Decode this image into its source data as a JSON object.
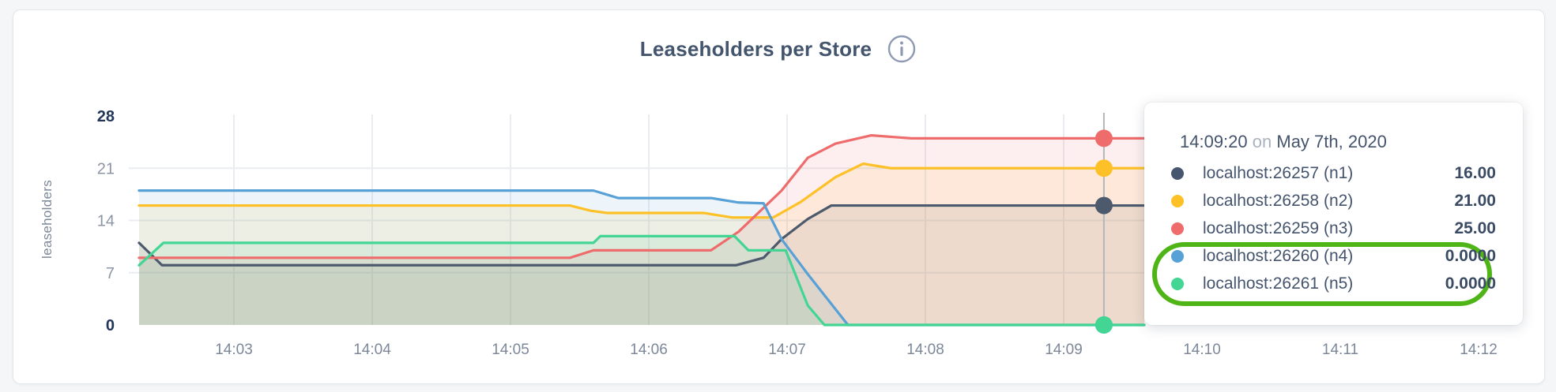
{
  "chart_data": {
    "type": "area",
    "title": "Leaseholders per Store",
    "ylabel": "leaseholders",
    "xlabel": "",
    "ylim": [
      0,
      28
    ],
    "grid": true,
    "legend_position": "tooltip",
    "y_ticks": [
      {
        "value": 0,
        "label": "0",
        "bold": true
      },
      {
        "value": 7,
        "label": "7",
        "bold": false
      },
      {
        "value": 14,
        "label": "14",
        "bold": false
      },
      {
        "value": 21,
        "label": "21",
        "bold": false
      },
      {
        "value": 28,
        "label": "28",
        "bold": true
      }
    ],
    "y_gridlines": [
      7,
      14,
      21
    ],
    "x_ticks": [
      {
        "minute": 3,
        "label": "14:03"
      },
      {
        "minute": 4,
        "label": "14:04"
      },
      {
        "minute": 5,
        "label": "14:05"
      },
      {
        "minute": 6,
        "label": "14:06"
      },
      {
        "minute": 7,
        "label": "14:07"
      },
      {
        "minute": 8,
        "label": "14:08"
      },
      {
        "minute": 9,
        "label": "14:09"
      },
      {
        "minute": 10,
        "label": "14:10"
      },
      {
        "minute": 11,
        "label": "14:11"
      },
      {
        "minute": 12,
        "label": "14:12"
      }
    ],
    "x_domain": {
      "start_minute": 2.314,
      "end_minute": 12.314,
      "data_end_minute": 9.583,
      "hour_prefix": "14"
    },
    "series": [
      {
        "id": "n1",
        "name": "localhost:26257 (n1)",
        "color": "#4d5a6d",
        "points": [
          [
            2.314,
            11
          ],
          [
            2.48,
            8
          ],
          [
            6.63,
            8
          ],
          [
            6.83,
            9
          ],
          [
            6.96,
            11.5
          ],
          [
            7.15,
            14.2
          ],
          [
            7.32,
            16
          ],
          [
            9.583,
            16
          ]
        ]
      },
      {
        "id": "n2",
        "name": "localhost:26258 (n2)",
        "color": "#fdc127",
        "points": [
          [
            2.314,
            16
          ],
          [
            5.43,
            16
          ],
          [
            5.58,
            15.3
          ],
          [
            5.7,
            15
          ],
          [
            6.4,
            15
          ],
          [
            6.6,
            14.4
          ],
          [
            6.9,
            14.4
          ],
          [
            7.1,
            16.5
          ],
          [
            7.35,
            19.8
          ],
          [
            7.55,
            21.6
          ],
          [
            7.75,
            21
          ],
          [
            9.583,
            21
          ]
        ]
      },
      {
        "id": "n3",
        "name": "localhost:26259 (n3)",
        "color": "#ee6c6c",
        "points": [
          [
            2.314,
            9
          ],
          [
            5.43,
            9
          ],
          [
            5.6,
            10
          ],
          [
            6.45,
            10
          ],
          [
            6.65,
            12.5
          ],
          [
            6.96,
            18
          ],
          [
            7.15,
            22.4
          ],
          [
            7.35,
            24.3
          ],
          [
            7.61,
            25.4
          ],
          [
            7.9,
            25
          ],
          [
            9.583,
            25
          ]
        ]
      },
      {
        "id": "n4",
        "name": "localhost:26260 (n4)",
        "color": "#57a1d6",
        "points": [
          [
            2.314,
            18
          ],
          [
            5.6,
            18
          ],
          [
            5.78,
            17
          ],
          [
            6.45,
            17
          ],
          [
            6.65,
            16.4
          ],
          [
            6.83,
            16.3
          ],
          [
            6.96,
            11.5
          ],
          [
            7.15,
            6.8
          ],
          [
            7.44,
            0
          ],
          [
            9.583,
            0
          ]
        ]
      },
      {
        "id": "n5",
        "name": "localhost:26261 (n5)",
        "color": "#43d593",
        "points": [
          [
            2.314,
            8
          ],
          [
            2.49,
            11
          ],
          [
            5.6,
            11
          ],
          [
            5.65,
            11.9
          ],
          [
            6.62,
            11.9
          ],
          [
            6.72,
            10
          ],
          [
            6.99,
            10
          ],
          [
            7.15,
            2.6
          ],
          [
            7.27,
            0
          ],
          [
            9.583,
            0
          ]
        ]
      }
    ],
    "hover": {
      "minute": 9.291,
      "values": {
        "n1": 16,
        "n2": 21,
        "n3": 25,
        "n4": 0,
        "n5": 0
      }
    }
  },
  "header": {
    "info_icon": "i"
  },
  "tooltip": {
    "time": "14:09:20",
    "on_word": "on",
    "date": "May 7th, 2020",
    "rows": [
      {
        "label": "localhost:26257 (n1)",
        "value": "16.00",
        "color": "#46566f",
        "circled": false
      },
      {
        "label": "localhost:26258 (n2)",
        "value": "21.00",
        "color": "#fdc127",
        "circled": false
      },
      {
        "label": "localhost:26259 (n3)",
        "value": "25.00",
        "color": "#ee6c6c",
        "circled": false
      },
      {
        "label": "localhost:26260 (n4)",
        "value": "0.0000",
        "color": "#57a1d6",
        "circled": true
      },
      {
        "label": "localhost:26261 (n5)",
        "value": "0.0000",
        "color": "#43d593",
        "circled": true
      }
    ],
    "annotation_color": "#4fb516"
  }
}
